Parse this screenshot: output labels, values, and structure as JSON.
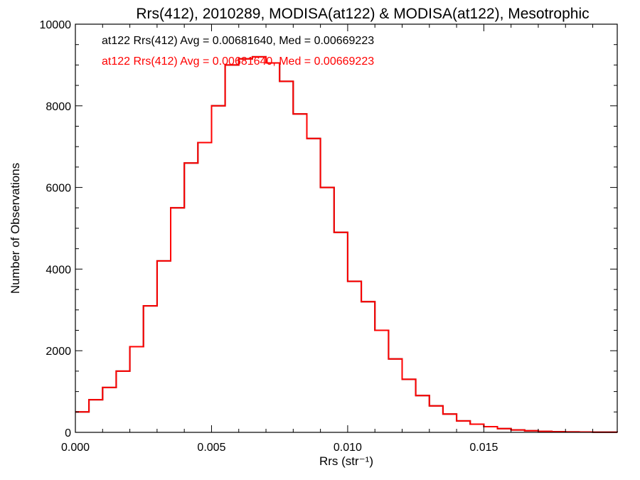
{
  "chart_data": {
    "type": "line",
    "title": "Rrs(412), 2010289, MODISA(at122) & MODISA(at122), Mesotrophic",
    "xlabel": "Rrs (str⁻¹)",
    "ylabel": "Number of Observations",
    "xlim": [
      0.0,
      0.0199
    ],
    "ylim": [
      0,
      10000
    ],
    "x_ticks": [
      "0.000",
      "0.005",
      "0.010",
      "0.015"
    ],
    "y_ticks": [
      "0",
      "2000",
      "4000",
      "6000",
      "8000",
      "10000"
    ],
    "annotations": [
      {
        "text": "at122 Rrs(412) Avg = 0.00681640, Med = 0.00669223",
        "color": "#000000"
      },
      {
        "text": "at122 Rrs(412) Avg = 0.00681640, Med = 0.00669223",
        "color": "#ff0000"
      }
    ],
    "grid": false,
    "series": [
      {
        "color": "#000000",
        "x": [
          0.0,
          0.0005,
          0.001,
          0.0015,
          0.002,
          0.0025,
          0.003,
          0.0035,
          0.004,
          0.0045,
          0.005,
          0.0055,
          0.006,
          0.0065,
          0.007,
          0.0075,
          0.008,
          0.0085,
          0.009,
          0.0095,
          0.01,
          0.0105,
          0.011,
          0.0115,
          0.012,
          0.0125,
          0.013,
          0.0135,
          0.014,
          0.0145,
          0.015,
          0.0155,
          0.016,
          0.0165,
          0.017,
          0.0175,
          0.018,
          0.0185,
          0.019,
          0.0199
        ],
        "y": [
          500,
          800,
          1100,
          1500,
          2100,
          3100,
          4200,
          5500,
          6600,
          7100,
          8000,
          9000,
          9150,
          9200,
          9050,
          8600,
          7800,
          7200,
          6000,
          4900,
          3700,
          3200,
          2500,
          1800,
          1300,
          900,
          650,
          450,
          280,
          200,
          140,
          90,
          60,
          40,
          25,
          15,
          10,
          8,
          5,
          3
        ]
      },
      {
        "color": "#ff0000",
        "x": [
          0.0,
          0.0005,
          0.001,
          0.0015,
          0.002,
          0.0025,
          0.003,
          0.0035,
          0.004,
          0.0045,
          0.005,
          0.0055,
          0.006,
          0.0065,
          0.007,
          0.0075,
          0.008,
          0.0085,
          0.009,
          0.0095,
          0.01,
          0.0105,
          0.011,
          0.0115,
          0.012,
          0.0125,
          0.013,
          0.0135,
          0.014,
          0.0145,
          0.015,
          0.0155,
          0.016,
          0.0165,
          0.017,
          0.0175,
          0.018,
          0.0185,
          0.019,
          0.0199
        ],
        "y": [
          500,
          800,
          1100,
          1500,
          2100,
          3100,
          4200,
          5500,
          6600,
          7100,
          8000,
          9000,
          9150,
          9200,
          9050,
          8600,
          7800,
          7200,
          6000,
          4900,
          3700,
          3200,
          2500,
          1800,
          1300,
          900,
          650,
          450,
          280,
          200,
          140,
          90,
          60,
          40,
          25,
          15,
          10,
          8,
          5,
          3
        ]
      }
    ]
  }
}
